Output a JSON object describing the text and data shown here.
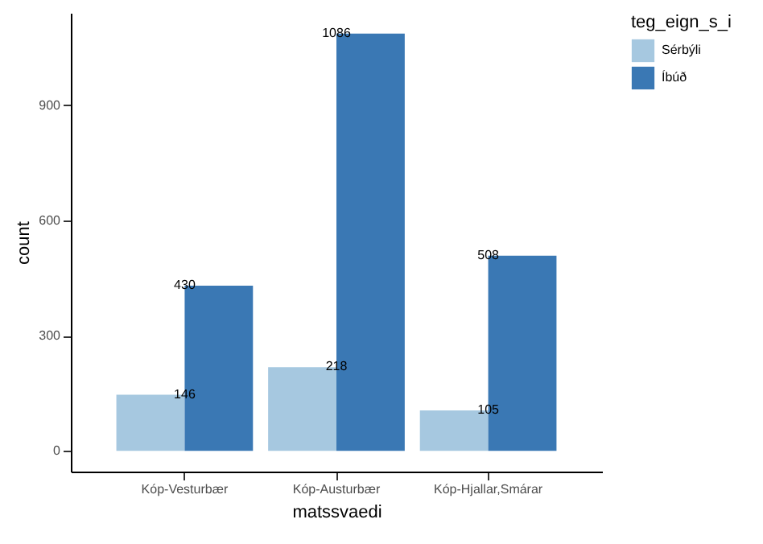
{
  "chart_data": {
    "type": "bar",
    "xlabel": "matssvaedi",
    "ylabel": "count",
    "legend_title": "teg_eign_s_i",
    "categories": [
      "Kóp-Vesturbær",
      "Kóp-Austurbær",
      "Kóp-Hjallar,Smárar"
    ],
    "series": [
      {
        "name": "Sérbýli",
        "color": "#a6c8e0",
        "values": [
          146,
          218,
          105
        ]
      },
      {
        "name": "Íbúð",
        "color": "#3a78b4",
        "values": [
          430,
          1086,
          508
        ]
      }
    ],
    "ylim": [
      -54,
      1140
    ],
    "yticks": [
      0,
      300,
      600,
      900
    ],
    "data_labels": true,
    "legend": "right",
    "grid": false
  }
}
